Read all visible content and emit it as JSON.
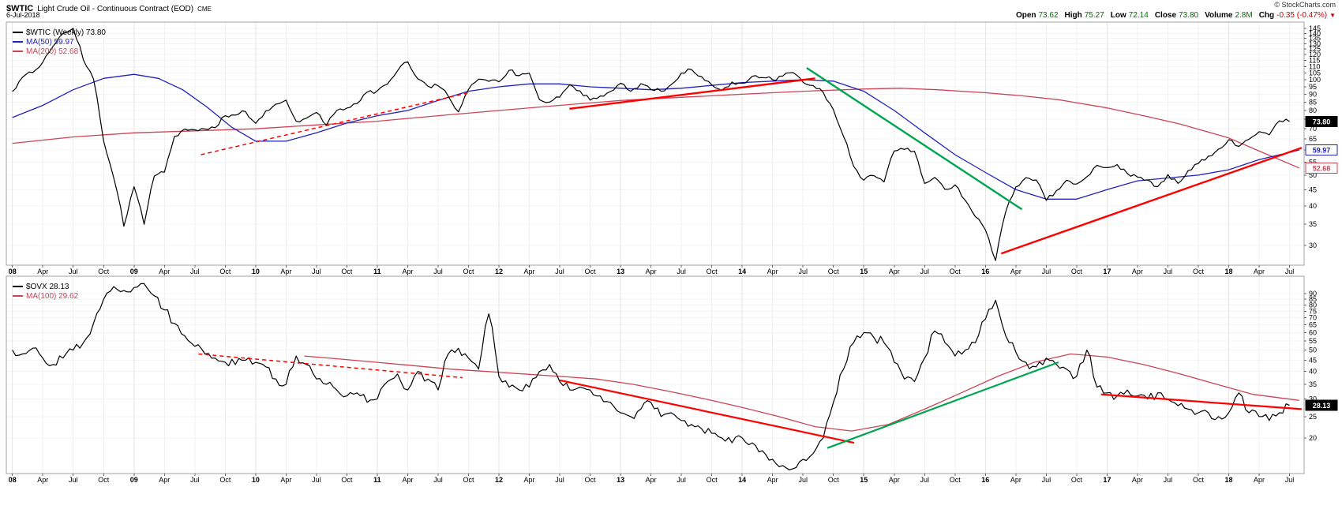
{
  "header": {
    "symbol": "$WTIC",
    "title": "Light Crude Oil - Continuous Contract (EOD)",
    "exchange": "CME",
    "copyright": "© StockCharts.com",
    "date": "6-Jul-2018",
    "quote": {
      "fields": [
        {
          "label": "Open",
          "value": "73.62",
          "negative": false
        },
        {
          "label": "High",
          "value": "75.27",
          "negative": false
        },
        {
          "label": "Low",
          "value": "72.14",
          "negative": false
        },
        {
          "label": "Close",
          "value": "73.80",
          "negative": false
        },
        {
          "label": "Volume",
          "value": "2.8M",
          "negative": false
        },
        {
          "label": "Chg",
          "value": "-0.35 (-0.47%)",
          "negative": true
        }
      ],
      "direction_icon": "▼"
    }
  },
  "colors": {
    "price": "#000000",
    "ma_blue": "#2222bb",
    "ma_rose": "#cc4455",
    "trend_red": "#ff0000",
    "trend_green": "#00a550",
    "grid": "#f0f0f0",
    "border": "#a0a0a0"
  },
  "chart_data": {
    "type": "line",
    "title": "$WTIC Light Crude Oil - Continuous Contract (EOD) CME, Weekly, with $OVX panel",
    "x_axis": {
      "range": [
        2007.95,
        2018.62
      ],
      "ticks": [
        [
          2008,
          "08"
        ],
        [
          2008.25,
          "Apr"
        ],
        [
          2008.5,
          "Jul"
        ],
        [
          2008.75,
          "Oct"
        ],
        [
          2009,
          "09"
        ],
        [
          2009.25,
          "Apr"
        ],
        [
          2009.5,
          "Jul"
        ],
        [
          2009.75,
          "Oct"
        ],
        [
          2010,
          "10"
        ],
        [
          2010.25,
          "Apr"
        ],
        [
          2010.5,
          "Jul"
        ],
        [
          2010.75,
          "Oct"
        ],
        [
          2011,
          "11"
        ],
        [
          2011.25,
          "Apr"
        ],
        [
          2011.5,
          "Jul"
        ],
        [
          2011.75,
          "Oct"
        ],
        [
          2012,
          "12"
        ],
        [
          2012.25,
          "Apr"
        ],
        [
          2012.5,
          "Jul"
        ],
        [
          2012.75,
          "Oct"
        ],
        [
          2013,
          "13"
        ],
        [
          2013.25,
          "Apr"
        ],
        [
          2013.5,
          "Jul"
        ],
        [
          2013.75,
          "Oct"
        ],
        [
          2014,
          "14"
        ],
        [
          2014.25,
          "Apr"
        ],
        [
          2014.5,
          "Jul"
        ],
        [
          2014.75,
          "Oct"
        ],
        [
          2015,
          "15"
        ],
        [
          2015.25,
          "Apr"
        ],
        [
          2015.5,
          "Jul"
        ],
        [
          2015.75,
          "Oct"
        ],
        [
          2016,
          "16"
        ],
        [
          2016.25,
          "Apr"
        ],
        [
          2016.5,
          "Jul"
        ],
        [
          2016.75,
          "Oct"
        ],
        [
          2017,
          "17"
        ],
        [
          2017.25,
          "Apr"
        ],
        [
          2017.5,
          "Jul"
        ],
        [
          2017.75,
          "Oct"
        ],
        [
          2018,
          "18"
        ],
        [
          2018.25,
          "Apr"
        ],
        [
          2018.5,
          "Jul"
        ]
      ]
    },
    "panels": [
      {
        "name": "wtic",
        "yscale": "log",
        "ylim": [
          26,
          152
        ],
        "yticks": [
          145,
          140,
          135,
          130,
          125,
          120,
          115,
          110,
          105,
          100,
          95,
          90,
          85,
          80,
          75,
          70,
          65,
          60,
          55,
          50,
          45,
          40,
          35,
          30
        ],
        "legend": [
          {
            "text": "$WTIC (Weekly) 73.80",
            "color": "#000000"
          },
          {
            "text": "MA(50) 59.97",
            "color": "#2222bb"
          },
          {
            "text": "MA(200) 52.68",
            "color": "#cc4455"
          }
        ],
        "series": [
          {
            "name": "ma200",
            "color": "#cc4455",
            "width": 1.3,
            "texture": 0,
            "x": [
              2008.0,
              2008.5,
              2009.0,
              2009.5,
              2010.0,
              2010.5,
              2011.0,
              2011.5,
              2012.0,
              2012.5,
              2013.0,
              2013.5,
              2014.0,
              2014.5,
              2015.0,
              2015.3,
              2015.6,
              2016.0,
              2016.3,
              2016.6,
              2017.0,
              2017.3,
              2017.6,
              2018.0,
              2018.3,
              2018.58
            ],
            "values": [
              63,
              66,
              68,
              69,
              70,
              72,
              74,
              77,
              80,
              83,
              86,
              88,
              90,
              92,
              93.5,
              94,
              93,
              91,
              89,
              86.5,
              81.5,
              77,
              72.5,
              65.5,
              58.5,
              52.7
            ]
          },
          {
            "name": "ma50",
            "color": "#2222bb",
            "width": 1.3,
            "texture": 0,
            "x": [
              2008.0,
              2008.25,
              2008.5,
              2008.75,
              2009.0,
              2009.2,
              2009.4,
              2009.6,
              2009.8,
              2010.0,
              2010.25,
              2010.5,
              2010.75,
              2011.0,
              2011.25,
              2011.5,
              2011.75,
              2012.0,
              2012.25,
              2012.5,
              2012.75,
              2013.0,
              2013.25,
              2013.5,
              2013.75,
              2014.0,
              2014.25,
              2014.5,
              2014.75,
              2015.0,
              2015.25,
              2015.5,
              2015.75,
              2016.0,
              2016.25,
              2016.5,
              2016.75,
              2017.0,
              2017.25,
              2017.5,
              2017.75,
              2018.0,
              2018.25,
              2018.58
            ],
            "values": [
              76,
              83,
              93,
              101,
              104,
              101,
              93,
              82,
              71,
              64,
              64,
              68,
              73,
              77,
              80,
              86,
              92,
              95,
              97,
              97,
              95,
              94,
              93,
              94,
              96,
              98,
              99,
              100,
              99,
              92,
              80,
              68,
              58,
              51,
              45,
              42,
              42,
              45,
              48,
              49,
              50,
              52,
              56,
              60
            ]
          },
          {
            "name": "price",
            "color": "#000000",
            "width": 1.2,
            "texture": 0.016,
            "x_start": 2008.0,
            "x_step": 0.0833333,
            "values": [
              91.7,
              101.8,
              105.4,
              113.5,
              127.4,
              140.0,
              145.3,
              115.5,
              100.6,
              64.0,
              49.0,
              34.5,
              46.0,
              35.0,
              49.7,
              51.1,
              66.3,
              69.9,
              69.5,
              69.9,
              70.6,
              77.0,
              77.3,
              79.4,
              72.9,
              79.7,
              83.8,
              86.2,
              74.0,
              75.6,
              78.9,
              71.9,
              80.0,
              81.4,
              84.1,
              91.4,
              92.2,
              96.9,
              106.7,
              113.9,
              100.6,
              95.4,
              95.7,
              88.8,
              79.2,
              93.2,
              100.4,
              98.8,
              98.5,
              107.1,
              103.0,
              104.9,
              86.5,
              85.0,
              88.1,
              96.5,
              92.2,
              86.2,
              88.9,
              91.8,
              97.5,
              92.0,
              97.2,
              93.2,
              92.0,
              96.6,
              105.0,
              107.7,
              102.3,
              96.4,
              92.7,
              98.4,
              97.5,
              102.6,
              101.6,
              100.0,
              102.7,
              105.4,
              98.2,
              95.9,
              91.2,
              80.5,
              66.2,
              53.3,
              48.2,
              49.8,
              47.6,
              59.6,
              60.3,
              59.5,
              47.1,
              49.2,
              45.1,
              46.6,
              41.7,
              37.0,
              33.6,
              26.9,
              38.3,
              45.9,
              49.1,
              48.3,
              41.6,
              44.7,
              48.2,
              46.9,
              49.4,
              53.7,
              52.8,
              54.0,
              50.6,
              49.3,
              48.3,
              46.0,
              50.2,
              47.1,
              51.7,
              54.4,
              57.4,
              60.4,
              64.7,
              61.6,
              64.9,
              68.6,
              67.0,
              74.2,
              73.8
            ]
          }
        ],
        "annotations": [
          {
            "color": "#ff0000",
            "dash": true,
            "width": 1.5,
            "points": [
              [
                2009.55,
                58
              ],
              [
                2011.75,
                91
              ]
            ]
          },
          {
            "color": "#ff0000",
            "dash": false,
            "width": 2.4,
            "points": [
              [
                2012.58,
                81
              ],
              [
                2014.6,
                101
              ]
            ]
          },
          {
            "color": "#00a550",
            "dash": false,
            "width": 2.4,
            "points": [
              [
                2014.53,
                109
              ],
              [
                2016.3,
                39
              ]
            ]
          },
          {
            "color": "#ff0000",
            "dash": false,
            "width": 2.4,
            "points": [
              [
                2016.13,
                28.3
              ],
              [
                2018.6,
                61
              ]
            ]
          }
        ],
        "tags": [
          {
            "label": "73.80",
            "value": 73.8,
            "bg": "#000000",
            "fg": "#ffffff",
            "border": "#000000"
          },
          {
            "label": "59.97",
            "value": 59.97,
            "bg": "#ffffff",
            "fg": "#2222bb",
            "border": "#2222bb"
          },
          {
            "label": "52.68",
            "value": 52.68,
            "bg": "#ffffff",
            "fg": "#cc4455",
            "border": "#cc4455"
          }
        ]
      },
      {
        "name": "ovx",
        "yscale": "log",
        "ylim": [
          13.8,
          108
        ],
        "yticks": [
          90,
          85,
          80,
          75,
          70,
          65,
          60,
          55,
          50,
          45,
          40,
          35,
          30,
          25,
          20
        ],
        "legend": [
          {
            "text": "$OVX 28.13",
            "color": "#000000"
          },
          {
            "text": "MA(100) 29.62",
            "color": "#cc4455"
          }
        ],
        "series": [
          {
            "name": "ma100",
            "color": "#cc4455",
            "width": 1.3,
            "texture": 0,
            "x": [
              2010.4,
              2010.7,
              2011.0,
              2011.3,
              2011.6,
              2011.9,
              2012.2,
              2012.5,
              2012.8,
              2013.1,
              2013.4,
              2013.7,
              2014.0,
              2014.3,
              2014.6,
              2014.9,
              2015.2,
              2015.5,
              2015.8,
              2016.1,
              2016.4,
              2016.7,
              2017.0,
              2017.3,
              2017.6,
              2017.9,
              2018.2,
              2018.58
            ],
            "values": [
              47,
              45.5,
              44,
              42.5,
              41,
              40,
              39,
              38,
              37,
              35,
              32.5,
              30,
              27.5,
              25,
              22.5,
              21.5,
              23,
              27,
              32,
              38,
              44,
              48,
              46.5,
              43,
              39,
              35,
              31.5,
              29.6
            ]
          },
          {
            "name": "ovx",
            "color": "#000000",
            "width": 1.2,
            "texture": 0.05,
            "x_start": 2008.0,
            "x_step": 0.0833333,
            "values": [
              50,
              48,
              51,
              46,
              43,
              46,
              50,
              54,
              66,
              85,
              97,
              93,
              96,
              100,
              88,
              76,
              66,
              58,
              52,
              48,
              46,
              44,
              43,
              45,
              44,
              42,
              37,
              35,
              47,
              43,
              37,
              35,
              33,
              31,
              32,
              29,
              30,
              36,
              39,
              33,
              40,
              37,
              33,
              48,
              51,
              46,
              41,
              73,
              38,
              34,
              33,
              34,
              40,
              43,
              36,
              33,
              34,
              33,
              31,
              29,
              26,
              25,
              27,
              29,
              25,
              26,
              24,
              23,
              22,
              21,
              20,
              19,
              20,
              19,
              17.5,
              16,
              15,
              14.5,
              16,
              17,
              20,
              29,
              41,
              54,
              60,
              57,
              54,
              44,
              37,
              36,
              46,
              61,
              54,
              47,
              50,
              54,
              69,
              84,
              58,
              49,
              44,
              42,
              46,
              43,
              41,
              38,
              50,
              34,
              32,
              31,
              33,
              31,
              30,
              32,
              30,
              28,
              27,
              26,
              26,
              25,
              26,
              32,
              26,
              25,
              24,
              26,
              28.1
            ]
          }
        ],
        "annotations": [
          {
            "color": "#ff0000",
            "dash": true,
            "width": 1.5,
            "points": [
              [
                2009.53,
                48
              ],
              [
                2011.7,
                37.5
              ]
            ]
          },
          {
            "color": "#ff0000",
            "dash": false,
            "width": 2.2,
            "points": [
              [
                2012.5,
                36.5
              ],
              [
                2014.92,
                19
              ]
            ]
          },
          {
            "color": "#00a550",
            "dash": false,
            "width": 2.2,
            "points": [
              [
                2014.7,
                18
              ],
              [
                2016.6,
                44
              ]
            ]
          },
          {
            "color": "#ff0000",
            "dash": false,
            "width": 2.2,
            "points": [
              [
                2016.95,
                31.5
              ],
              [
                2018.6,
                27
              ]
            ]
          }
        ],
        "tags": [
          {
            "label": "28.13",
            "value": 28.13,
            "bg": "#000000",
            "fg": "#ffffff",
            "border": "#000000"
          }
        ]
      }
    ]
  }
}
